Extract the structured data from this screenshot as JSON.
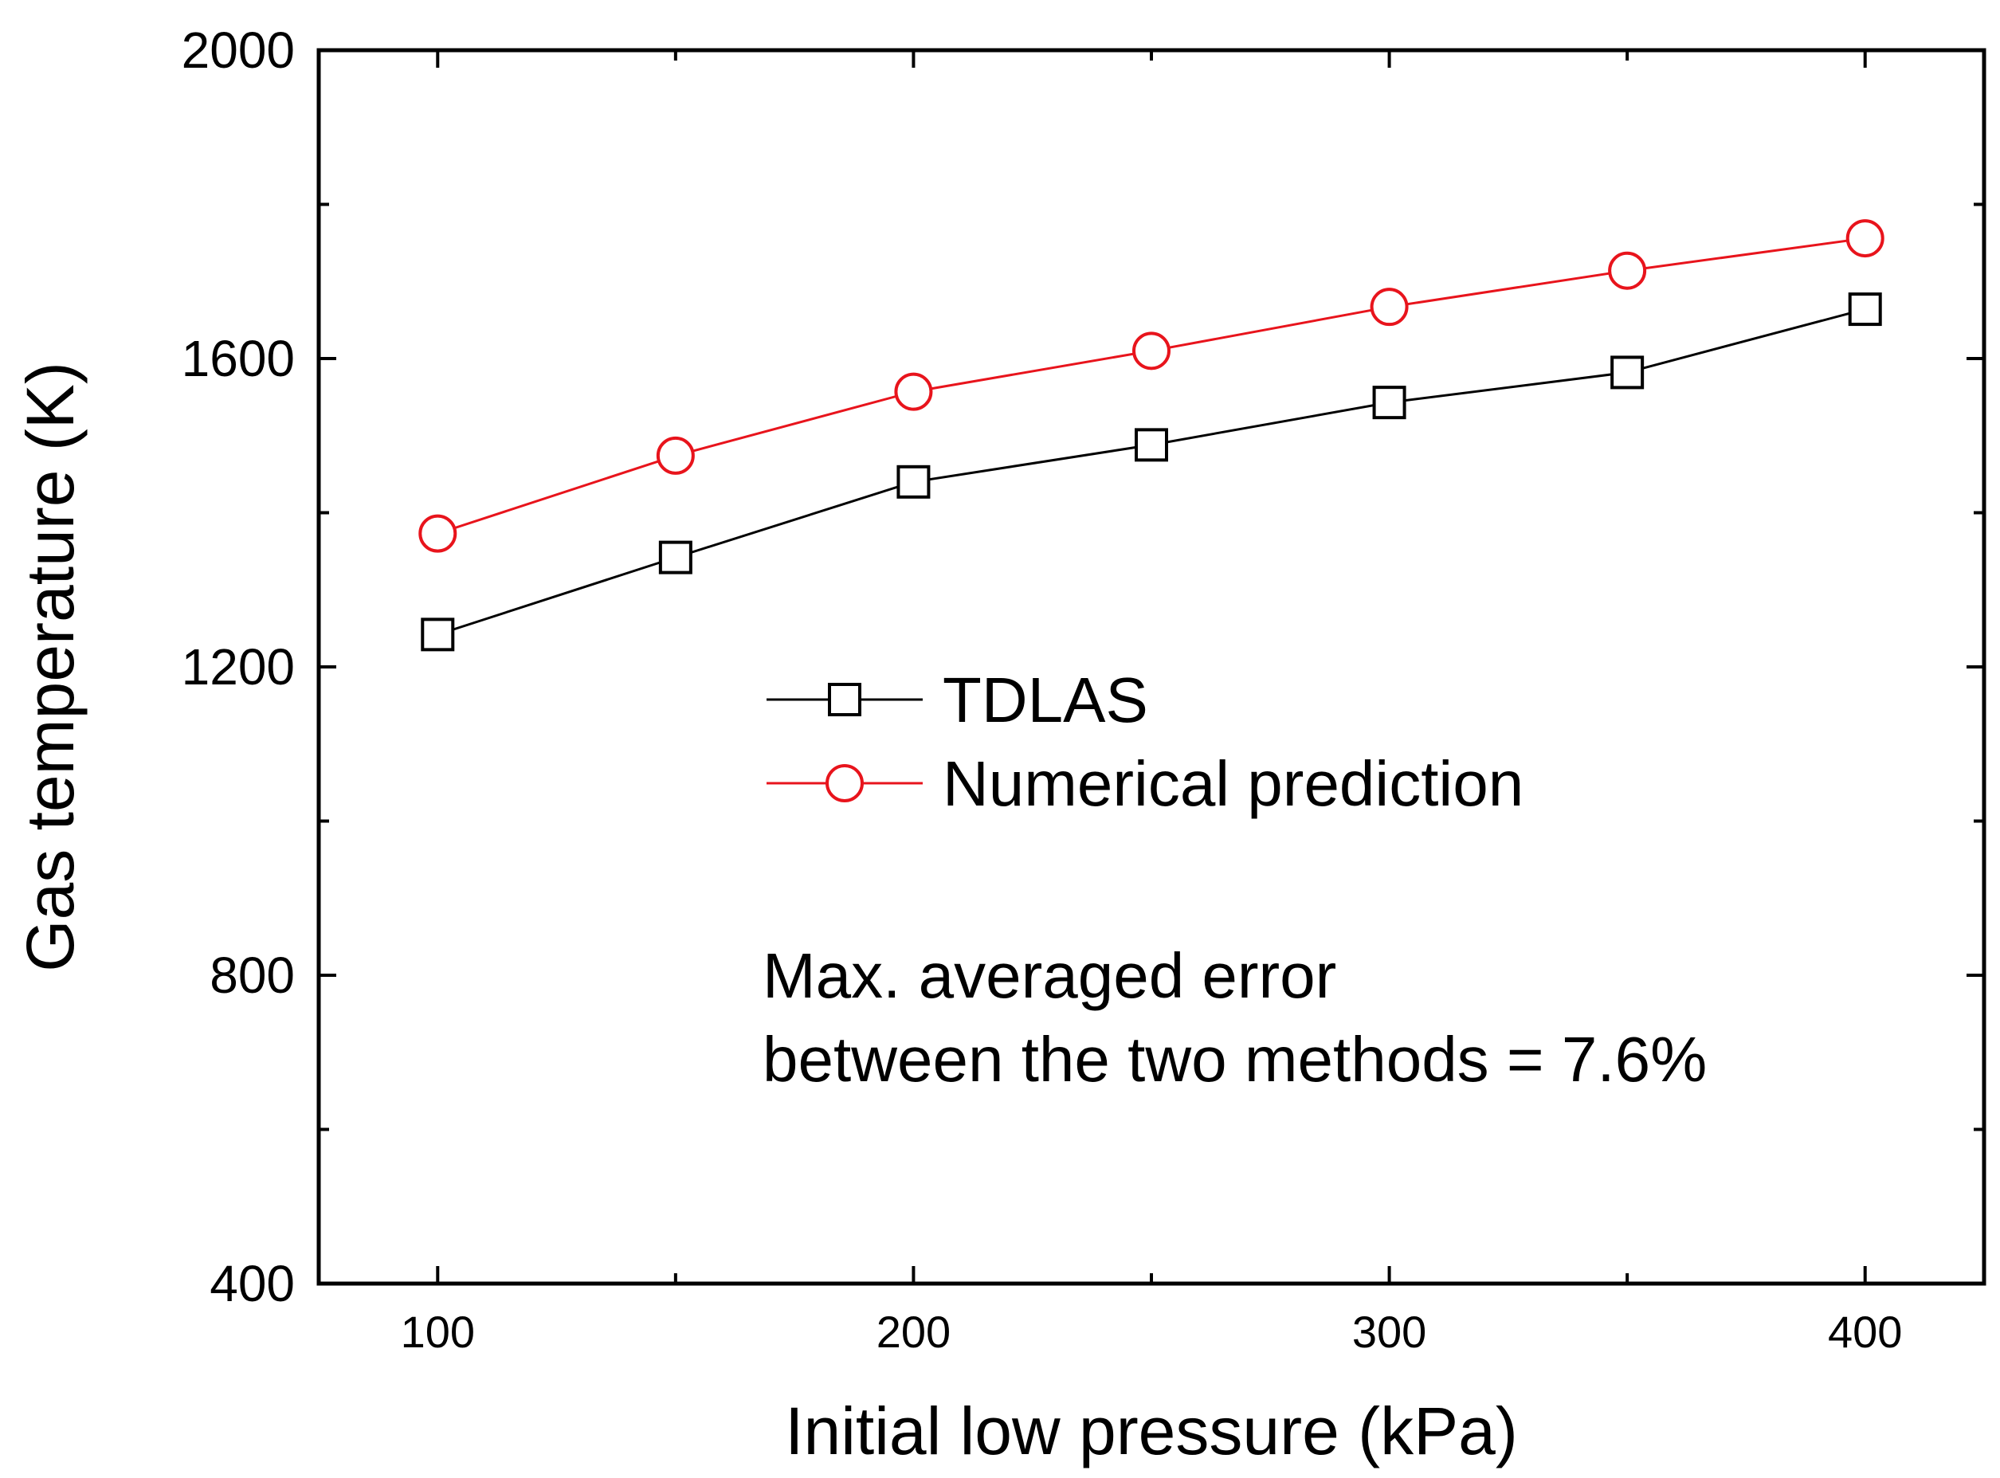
{
  "chart_data": {
    "type": "line",
    "title": "",
    "xlabel": "Initial low pressure (kPa)",
    "ylabel": "Gas temperature (K)",
    "xlim": [
      75,
      425
    ],
    "ylim": [
      400,
      2000
    ],
    "xticks": [
      100,
      200,
      300,
      400
    ],
    "yticks": [
      400,
      800,
      1200,
      1600,
      2000
    ],
    "x_minor_ticks": [
      150,
      250,
      350
    ],
    "y_minor_ticks": [
      600,
      1000,
      1400,
      1800
    ],
    "x": [
      100,
      150,
      200,
      250,
      300,
      350,
      400
    ],
    "series": [
      {
        "name": "TDLAS",
        "color": "#000000",
        "marker": "square",
        "values": [
          1242,
          1342,
          1440,
          1488,
          1543,
          1582,
          1664
        ]
      },
      {
        "name": "Numerical prediction",
        "color": "#e8141c",
        "marker": "circle",
        "values": [
          1373,
          1474,
          1557,
          1610,
          1667,
          1714,
          1756
        ]
      }
    ],
    "legend_position": "center",
    "annotation": {
      "line1": "Max. averaged error",
      "line2": "between the two methods = 7.6%"
    }
  }
}
